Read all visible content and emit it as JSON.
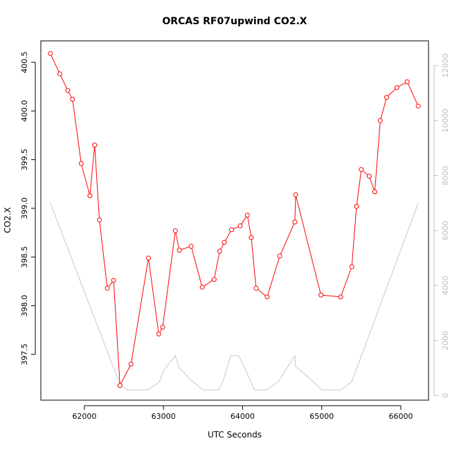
{
  "chart_data": {
    "type": "line",
    "title": "ORCAS RF07upwind CO2.X",
    "xlabel": "UTC Seconds",
    "ylabel": "CO2.X",
    "xlim": [
      61450,
      66350
    ],
    "ylim": [
      397.03,
      400.72
    ],
    "y2lim": [
      -170,
      12900
    ],
    "x_ticks": [
      62000,
      63000,
      64000,
      65000,
      66000
    ],
    "y_ticks": [
      397.5,
      398.0,
      398.5,
      399.0,
      399.5,
      400.0,
      400.5
    ],
    "y2_ticks": [
      0,
      2000,
      4000,
      6000,
      8000,
      10000,
      12000
    ],
    "colors": {
      "co2": "#ff0000",
      "altitude": "#c8c8c8",
      "frame": "#000000",
      "right_axis": "#bdbdbd"
    },
    "series": [
      {
        "axis": "left",
        "style": "line+points",
        "x": [
          61570,
          61690,
          61790,
          61850,
          61960,
          62070,
          62130,
          62190,
          62290,
          62370,
          62450,
          62590,
          62810,
          62940,
          62990,
          63150,
          63200,
          63350,
          63490,
          63640,
          63710,
          63770,
          63860,
          63970,
          64060,
          64110,
          64170,
          64310,
          64470,
          64660,
          64670,
          64990,
          65240,
          65380,
          65440,
          65500,
          65600,
          65670,
          65740,
          65820,
          65950,
          66080,
          66220
        ],
        "y": [
          400.59,
          400.38,
          400.21,
          400.12,
          399.46,
          399.13,
          399.65,
          398.88,
          398.18,
          398.26,
          397.18,
          397.4,
          398.49,
          397.71,
          397.78,
          398.77,
          398.57,
          398.61,
          398.19,
          398.27,
          398.56,
          398.65,
          398.78,
          398.82,
          398.93,
          398.7,
          398.18,
          398.09,
          398.51,
          398.86,
          399.14,
          398.11,
          398.09,
          398.4,
          399.02,
          399.4,
          399.33,
          399.17,
          399.9,
          400.14,
          400.24,
          400.3,
          400.05
        ]
      },
      {
        "axis": "right",
        "style": "line",
        "x": [
          61570,
          62450,
          62550,
          62800,
          62950,
          63000,
          63150,
          63200,
          63350,
          63500,
          63700,
          63750,
          63850,
          63950,
          64050,
          64150,
          64300,
          64450,
          64660,
          64670,
          64800,
          65000,
          65240,
          65380,
          66220
        ],
        "y": [
          7000,
          400,
          200,
          200,
          500,
          900,
          1450,
          1000,
          550,
          200,
          200,
          500,
          1450,
          1450,
          850,
          200,
          200,
          500,
          1450,
          1050,
          750,
          200,
          200,
          500,
          7000
        ]
      }
    ]
  }
}
